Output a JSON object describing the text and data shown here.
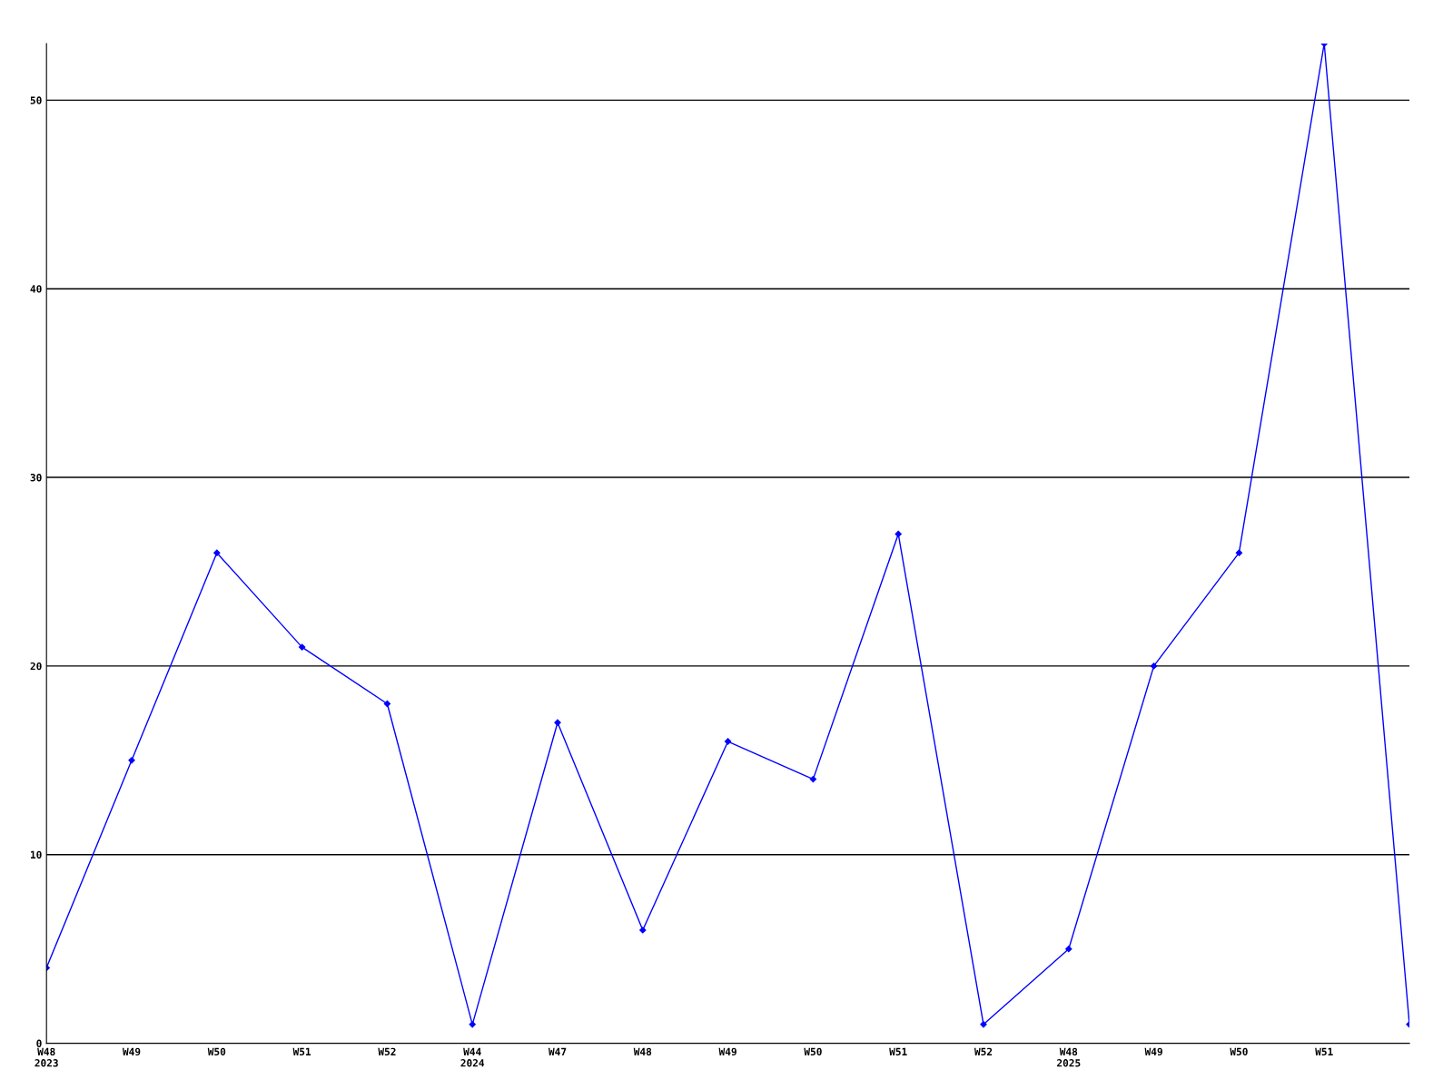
{
  "chart_data": {
    "type": "line",
    "categories": [
      "W48\n2023",
      "W49",
      "W50",
      "W51",
      "W52",
      "W44\n2024",
      "W47",
      "W48",
      "W49",
      "W50",
      "W51",
      "W52",
      "W48\n2025",
      "W49",
      "W50",
      "W51",
      null
    ],
    "series": [
      {
        "color": "#0000ff",
        "values": [
          4,
          15,
          26,
          21,
          18,
          1,
          17,
          6,
          16,
          14,
          27,
          1,
          5,
          20,
          26,
          53,
          1
        ]
      }
    ],
    "ylim": [
      0,
      53
    ],
    "yticks": [
      0,
      10,
      20,
      30,
      40,
      50
    ],
    "grid": "y",
    "marker": "diamond",
    "line_style": "solid",
    "legend": false
  }
}
